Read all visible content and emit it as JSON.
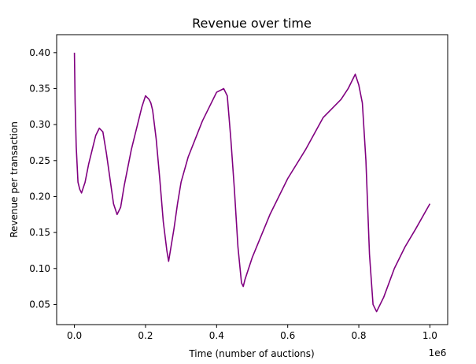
{
  "chart_data": {
    "type": "line",
    "title": "Revenue over time",
    "xlabel": "Time (number of auctions)",
    "ylabel": "Revenue per transaction",
    "x_offset_label": "1e6",
    "xlim": [
      -0.05,
      1.05
    ],
    "ylim": [
      0.022,
      0.425
    ],
    "x_ticks": [
      0.0,
      0.2,
      0.4,
      0.6,
      0.8,
      1.0
    ],
    "x_tick_labels": [
      "0.0",
      "0.2",
      "0.4",
      "0.6",
      "0.8",
      "1.0"
    ],
    "y_ticks": [
      0.05,
      0.1,
      0.15,
      0.2,
      0.25,
      0.3,
      0.35,
      0.4
    ],
    "y_tick_labels": [
      "0.05",
      "0.10",
      "0.15",
      "0.20",
      "0.25",
      "0.30",
      "0.35",
      "0.40"
    ],
    "grid": false,
    "legend": "none",
    "line_color": "#800080",
    "series": [
      {
        "x": [
          0.0,
          0.002,
          0.005,
          0.01,
          0.015,
          0.02,
          0.03,
          0.04,
          0.05,
          0.06,
          0.07,
          0.08,
          0.09,
          0.1,
          0.11,
          0.12,
          0.13,
          0.14,
          0.15,
          0.16,
          0.17,
          0.18,
          0.19,
          0.2,
          0.21,
          0.215,
          0.22,
          0.23,
          0.24,
          0.25,
          0.26,
          0.265,
          0.27,
          0.28,
          0.29,
          0.3,
          0.32,
          0.34,
          0.36,
          0.38,
          0.4,
          0.42,
          0.43,
          0.44,
          0.45,
          0.46,
          0.47,
          0.475,
          0.48,
          0.5,
          0.55,
          0.6,
          0.65,
          0.7,
          0.72,
          0.75,
          0.77,
          0.78,
          0.79,
          0.8,
          0.81,
          0.82,
          0.83,
          0.84,
          0.85,
          0.87,
          0.9,
          0.93,
          0.96,
          1.0
        ],
        "y": [
          0.4,
          0.33,
          0.27,
          0.22,
          0.21,
          0.205,
          0.22,
          0.245,
          0.265,
          0.285,
          0.295,
          0.29,
          0.26,
          0.225,
          0.19,
          0.175,
          0.185,
          0.215,
          0.24,
          0.265,
          0.285,
          0.305,
          0.325,
          0.34,
          0.335,
          0.33,
          0.32,
          0.28,
          0.225,
          0.165,
          0.125,
          0.11,
          0.125,
          0.155,
          0.19,
          0.22,
          0.255,
          0.28,
          0.305,
          0.325,
          0.345,
          0.35,
          0.34,
          0.28,
          0.21,
          0.13,
          0.08,
          0.075,
          0.085,
          0.115,
          0.175,
          0.225,
          0.265,
          0.31,
          0.32,
          0.335,
          0.35,
          0.36,
          0.37,
          0.355,
          0.33,
          0.25,
          0.12,
          0.05,
          0.04,
          0.06,
          0.1,
          0.13,
          0.155,
          0.19
        ]
      }
    ]
  }
}
